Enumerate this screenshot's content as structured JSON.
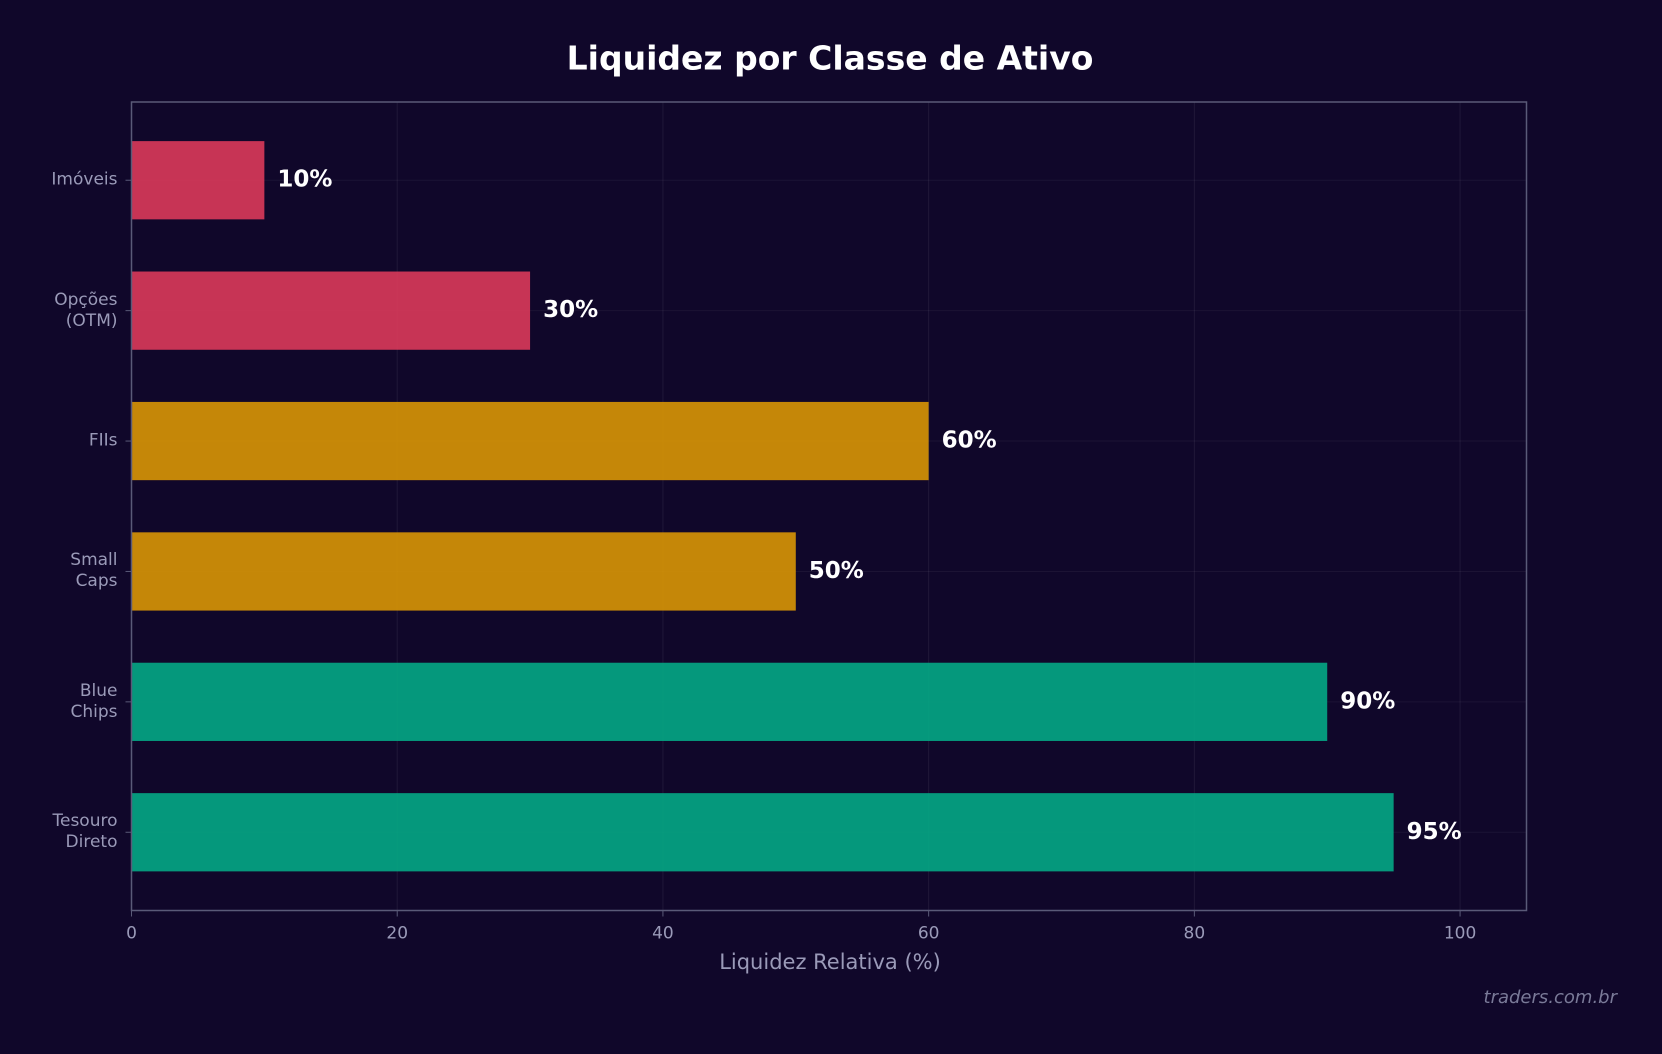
{
  "chart_data": {
    "type": "barh",
    "title": "Liquidez por Classe de Ativo",
    "xlabel": "Liquidez Relativa (%)",
    "watermark": "traders.com.br",
    "categories": [
      "Tesouro\nDireto",
      "Blue\nChips",
      "Small\nCaps",
      "FIIs",
      "Opções\n(OTM)",
      "Imóveis"
    ],
    "values": [
      95,
      90,
      50,
      60,
      30,
      10
    ],
    "value_labels": [
      "95%",
      "90%",
      "50%",
      "60%",
      "30%",
      "10%"
    ],
    "colors": [
      "#04a985",
      "#04a985",
      "#d99604",
      "#d99604",
      "#dc3a5a",
      "#dc3a5a"
    ],
    "xlim": [
      0,
      105
    ],
    "xticks": [
      0,
      20,
      40,
      60,
      80,
      100
    ],
    "grid": true
  }
}
